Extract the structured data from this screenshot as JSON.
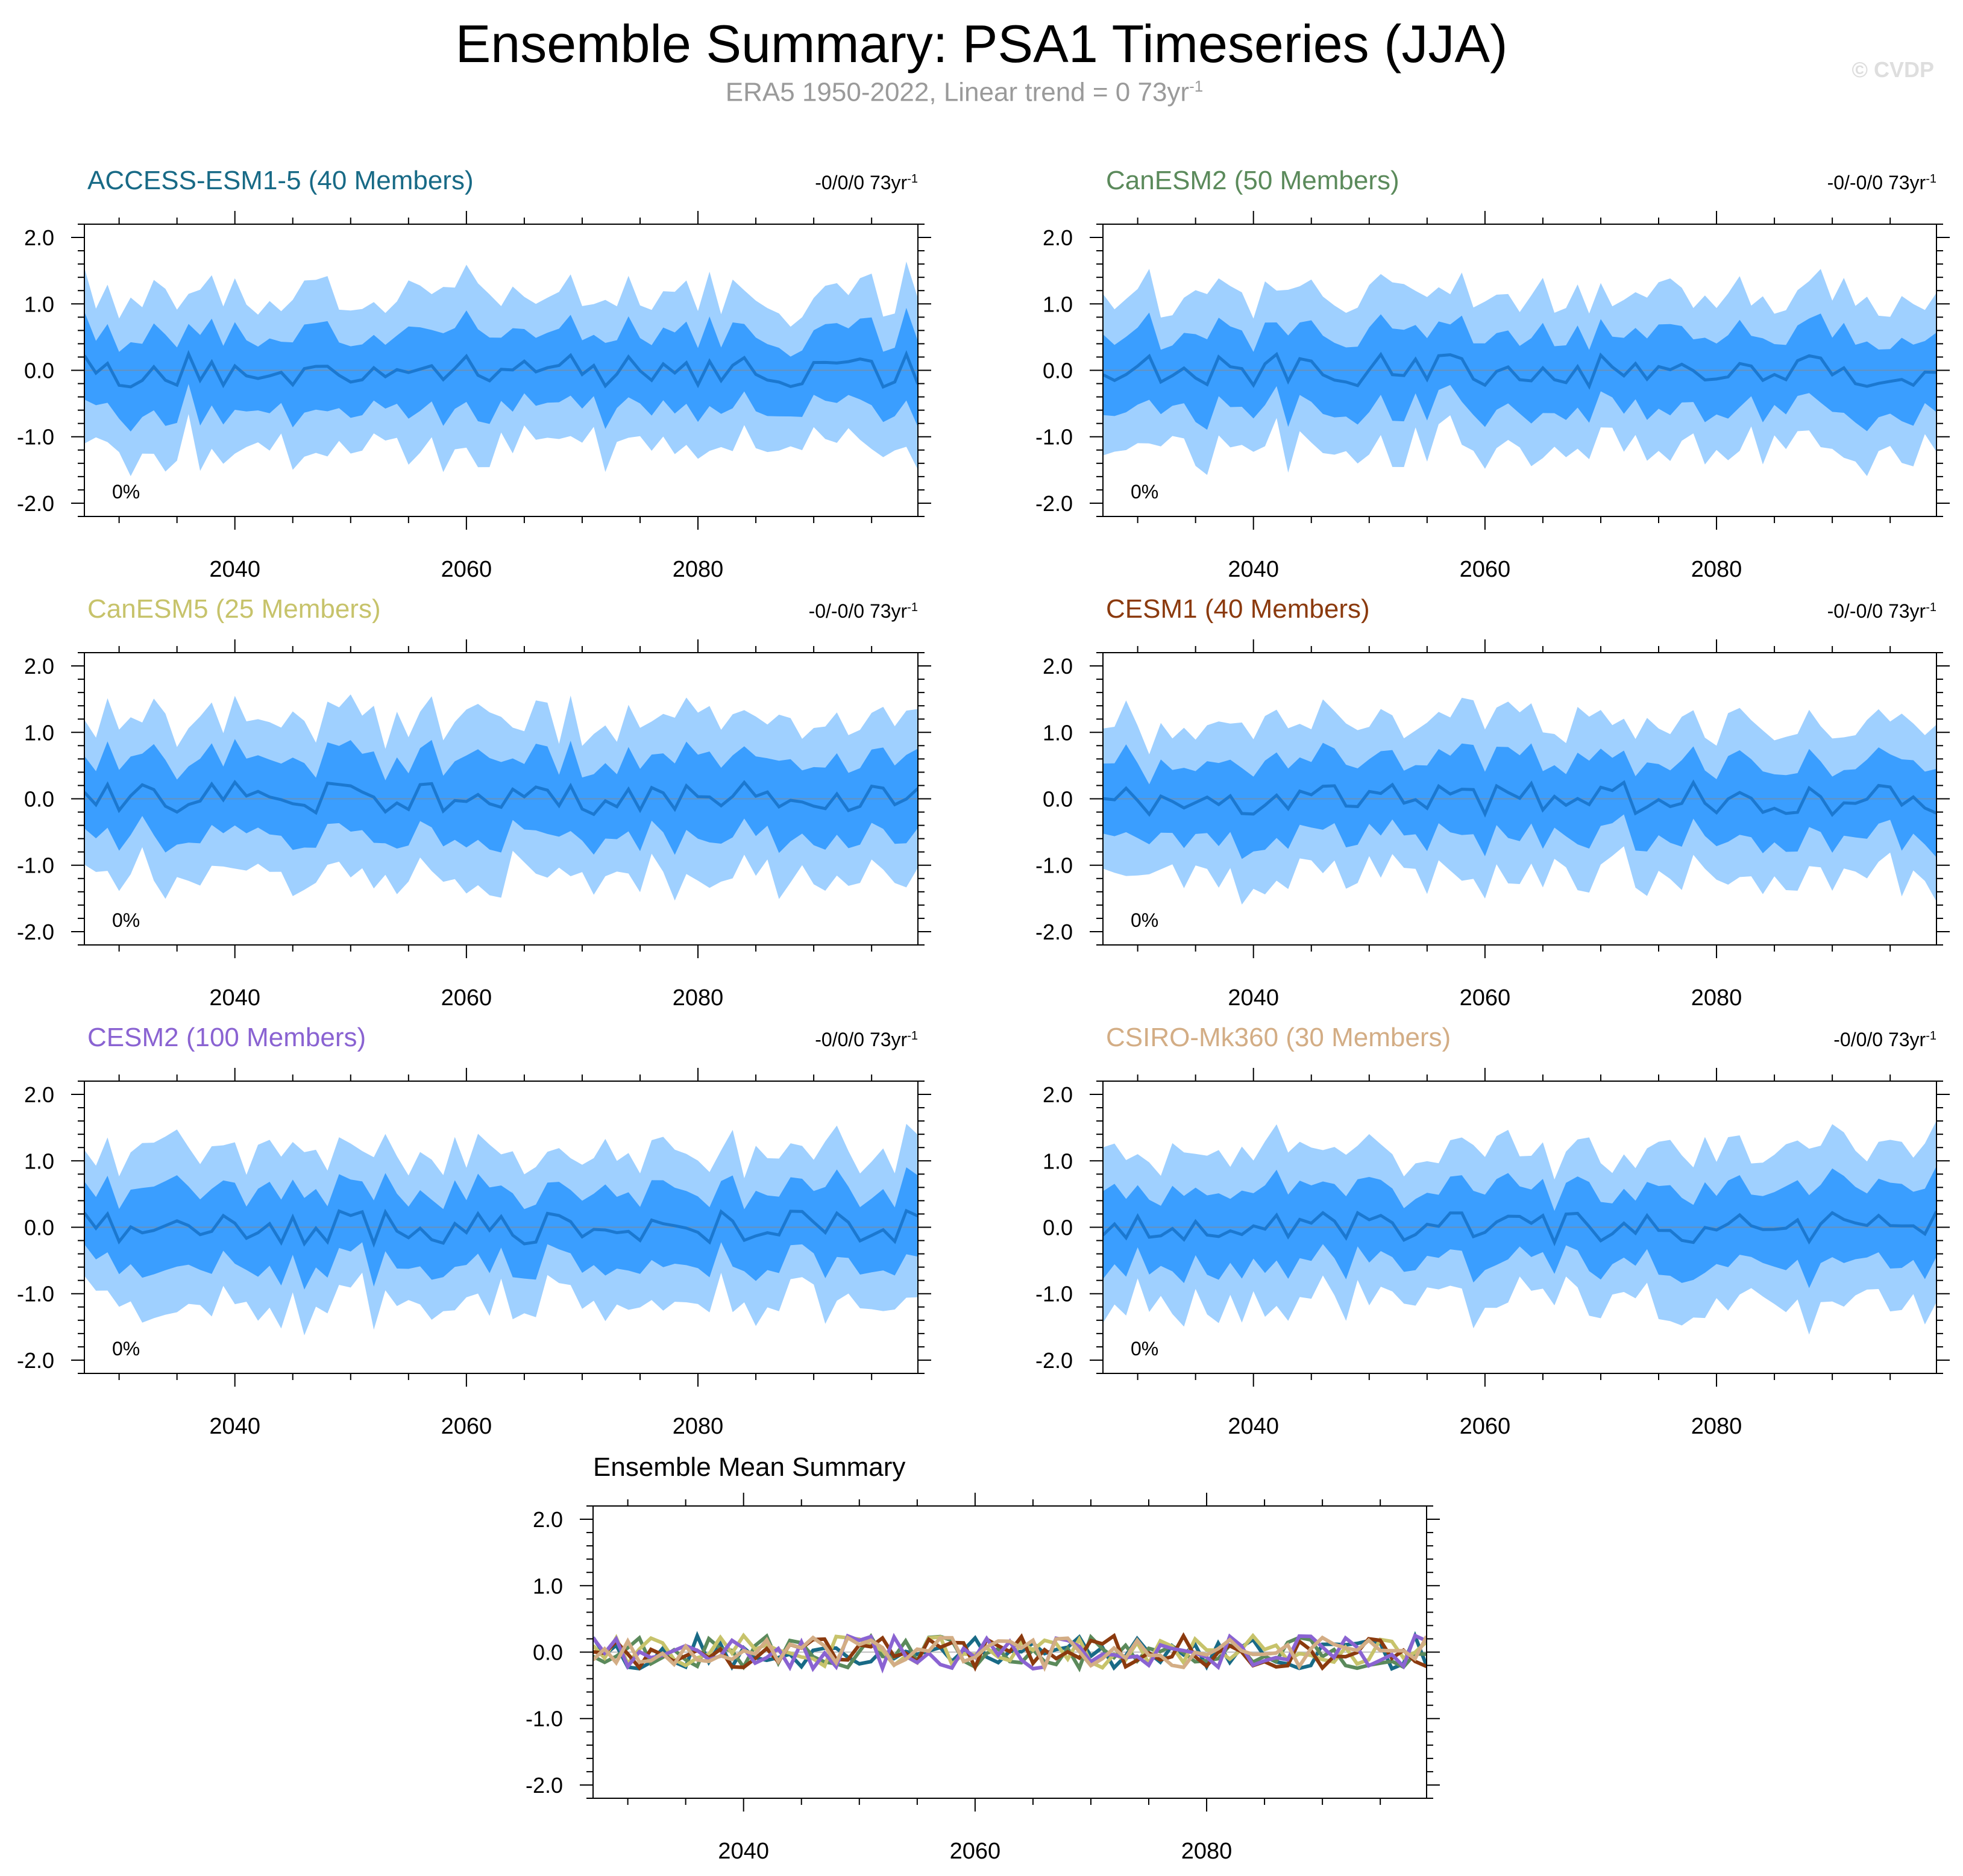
{
  "title": "Ensemble Summary: PSA1 Timeseries (JJA)",
  "subtitle": "ERA5 1950-2022, Linear trend = 0 73yr",
  "subtitle_unit_exp": "-1",
  "copyright": "© CVDP",
  "colors": {
    "outer_band": "#9fd0ff",
    "inner_band": "#3a9eff",
    "ens_mean_line": "#1b78d0",
    "zero_line": "#8a8a8a"
  },
  "chart_data": [
    {
      "type": "area",
      "panel": "ACCESS-ESM1-5",
      "title": "ACCESS-ESM1-5 (40 Members)",
      "title_color": "#186a86",
      "trend_label": "-0/0/0 73yr",
      "trend_exp": "-1",
      "percent_label": "0%",
      "xlim": [
        2027,
        2099
      ],
      "ylim": [
        -2.2,
        2.2
      ],
      "xticks": [
        "2040",
        "2060",
        "2080"
      ],
      "yticks": [
        "2.0",
        "1.0",
        "0.0",
        "-1.0",
        "-2.0"
      ],
      "seed": 11
    },
    {
      "type": "area",
      "panel": "CanESM2",
      "title": "CanESM2 (50 Members)",
      "title_color": "#5b8a5b",
      "trend_label": "-0/-0/0 73yr",
      "trend_exp": "-1",
      "percent_label": "0%",
      "xlim": [
        2027,
        2099
      ],
      "ylim": [
        -2.2,
        2.2
      ],
      "xticks": [
        "2040",
        "2060",
        "2080"
      ],
      "yticks": [
        "2.0",
        "1.0",
        "0.0",
        "-1.0",
        "-2.0"
      ],
      "seed": 23
    },
    {
      "type": "area",
      "panel": "CanESM5",
      "title": "CanESM5 (25 Members)",
      "title_color": "#c7c36b",
      "trend_label": "-0/-0/0 73yr",
      "trend_exp": "-1",
      "percent_label": "0%",
      "xlim": [
        2027,
        2099
      ],
      "ylim": [
        -2.2,
        2.2
      ],
      "xticks": [
        "2040",
        "2060",
        "2080"
      ],
      "yticks": [
        "2.0",
        "1.0",
        "0.0",
        "-1.0",
        "-2.0"
      ],
      "seed": 37
    },
    {
      "type": "area",
      "panel": "CESM1",
      "title": "CESM1 (40 Members)",
      "title_color": "#8b3a0e",
      "trend_label": "-0/-0/0 73yr",
      "trend_exp": "-1",
      "percent_label": "0%",
      "xlim": [
        2027,
        2099
      ],
      "ylim": [
        -2.2,
        2.2
      ],
      "xticks": [
        "2040",
        "2060",
        "2080"
      ],
      "yticks": [
        "2.0",
        "1.0",
        "0.0",
        "-1.0",
        "-2.0"
      ],
      "seed": 41
    },
    {
      "type": "area",
      "panel": "CESM2",
      "title": "CESM2 (100 Members)",
      "title_color": "#8a63d2",
      "trend_label": "-0/0/0 73yr",
      "trend_exp": "-1",
      "percent_label": "0%",
      "xlim": [
        2027,
        2099
      ],
      "ylim": [
        -2.2,
        2.2
      ],
      "xticks": [
        "2040",
        "2060",
        "2080"
      ],
      "yticks": [
        "2.0",
        "1.0",
        "0.0",
        "-1.0",
        "-2.0"
      ],
      "seed": 53
    },
    {
      "type": "area",
      "panel": "CSIRO-Mk360",
      "title": "CSIRO-Mk360 (30 Members)",
      "title_color": "#d3ad85",
      "trend_label": "-0/0/0 73yr",
      "trend_exp": "-1",
      "percent_label": "0%",
      "xlim": [
        2027,
        2099
      ],
      "ylim": [
        -2.2,
        2.2
      ],
      "xticks": [
        "2040",
        "2060",
        "2080"
      ],
      "yticks": [
        "2.0",
        "1.0",
        "0.0",
        "-1.0",
        "-2.0"
      ],
      "seed": 67
    },
    {
      "type": "line",
      "panel": "Ensemble Mean Summary",
      "title": "Ensemble Mean Summary",
      "title_color": "#000000",
      "xlim": [
        2027,
        2099
      ],
      "ylim": [
        -2.2,
        2.2
      ],
      "xticks": [
        "2040",
        "2060",
        "2080"
      ],
      "yticks": [
        "2.0",
        "1.0",
        "0.0",
        "-1.0",
        "-2.0"
      ],
      "series_colors": [
        "#186a86",
        "#5b8a5b",
        "#c7c36b",
        "#8b3a0e",
        "#8a63d2",
        "#d3ad85"
      ],
      "series_seeds": [
        11,
        23,
        37,
        41,
        53,
        67
      ]
    }
  ]
}
